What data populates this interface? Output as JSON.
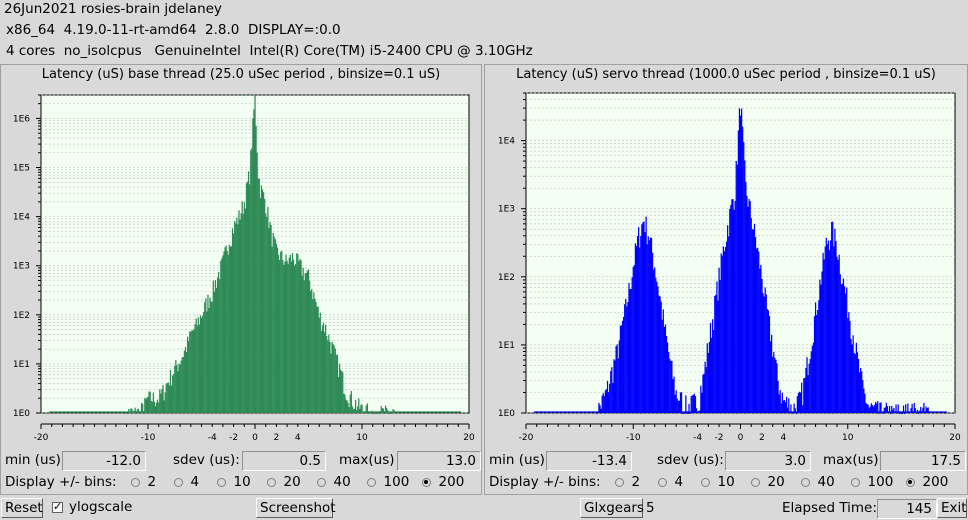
{
  "header": {
    "line1": "26Jun2021 rosies-brain jdelaney",
    "line2": "x86_64  4.19.0-11-rt-amd64  2.8.0  DISPLAY=:0.0",
    "line3": "4 cores  no_isolcpus   GenuineIntel  Intel(R) Core(TM) i5-2400 CPU @ 3.10GHz"
  },
  "base": {
    "title": "Latency (uS) base thread (25.0 uSec period , binsize=0.1 uS)",
    "color": "#2e8b57",
    "min_label": "min (us)",
    "min_value": "-12.0",
    "sdev_label": "sdev (us):",
    "sdev_value": "0.5",
    "max_label": "max(us)",
    "max_value": "13.0",
    "bins_label": "Display +/- bins:",
    "bins_options": [
      "2",
      "4",
      "10",
      "20",
      "40",
      "100",
      "200"
    ],
    "bins_selected": "200"
  },
  "servo": {
    "title": "Latency (uS) servo thread (1000.0 uSec period , binsize=0.1 uS)",
    "color": "#0000ff",
    "min_label": "min (us)",
    "min_value": "-13.4",
    "sdev_label": "sdev (us):",
    "sdev_value": "3.0",
    "max_label": "max(us)",
    "max_value": "17.5",
    "bins_label": "Display +/- bins:",
    "bins_options": [
      "2",
      "4",
      "10",
      "20",
      "40",
      "100",
      "200"
    ],
    "bins_selected": "200"
  },
  "chart_data": [
    {
      "type": "bar",
      "title": "Latency (uS) base thread (25.0 uSec period , binsize=0.1 uS)",
      "xlim": [
        -20,
        20
      ],
      "xticks": [
        "-20",
        "-10",
        "-4",
        "-2",
        "0",
        "2",
        "4",
        "10",
        "20"
      ],
      "xtick_values": [
        -20,
        -10,
        -4,
        -2,
        0,
        2,
        4,
        10,
        20
      ],
      "yscale": "log",
      "ylim": [
        1,
        3000000
      ],
      "yticks": [
        "1E0",
        "1E1",
        "1E2",
        "1E3",
        "1E4",
        "1E5",
        "1E6"
      ],
      "ytick_values": [
        1,
        10,
        100,
        1000,
        10000,
        100000,
        1000000
      ],
      "grid": true,
      "profile": [
        [
          -12.0,
          1
        ],
        [
          -11.0,
          1
        ],
        [
          -10.5,
          1.2
        ],
        [
          -10.0,
          2
        ],
        [
          -9.5,
          2
        ],
        [
          -9.0,
          2
        ],
        [
          -8.5,
          3
        ],
        [
          -8.0,
          5
        ],
        [
          -7.5,
          8
        ],
        [
          -7.0,
          12
        ],
        [
          -6.5,
          20
        ],
        [
          -6.0,
          40
        ],
        [
          -5.5,
          60
        ],
        [
          -5.0,
          100
        ],
        [
          -4.5,
          180
        ],
        [
          -4.0,
          300
        ],
        [
          -3.5,
          600
        ],
        [
          -3.0,
          1200
        ],
        [
          -2.5,
          3000
        ],
        [
          -2.0,
          6000
        ],
        [
          -1.5,
          10000
        ],
        [
          -1.0,
          20000
        ],
        [
          -0.5,
          80000
        ],
        [
          0.0,
          3000000
        ],
        [
          0.3,
          80000
        ],
        [
          0.5,
          40000
        ],
        [
          1.0,
          20000
        ],
        [
          1.5,
          5000
        ],
        [
          2.0,
          2000
        ],
        [
          2.5,
          1500
        ],
        [
          3.0,
          1200
        ],
        [
          3.5,
          1500
        ],
        [
          4.0,
          1200
        ],
        [
          4.5,
          800
        ],
        [
          5.0,
          600
        ],
        [
          5.5,
          250
        ],
        [
          6.0,
          100
        ],
        [
          6.5,
          60
        ],
        [
          7.0,
          30
        ],
        [
          7.5,
          15
        ],
        [
          8.0,
          7
        ],
        [
          8.5,
          3
        ],
        [
          9.0,
          2
        ],
        [
          9.5,
          1.5
        ],
        [
          10.0,
          1.2
        ],
        [
          11.0,
          1
        ],
        [
          13.0,
          1
        ]
      ]
    },
    {
      "type": "bar",
      "title": "Latency (uS) servo thread (1000.0 uSec period , binsize=0.1 uS)",
      "xlim": [
        -20,
        20
      ],
      "xticks": [
        "-20",
        "-10",
        "-4",
        "-2",
        "0",
        "2",
        "4",
        "10",
        "20"
      ],
      "xtick_values": [
        -20,
        -10,
        -4,
        -2,
        0,
        2,
        4,
        10,
        20
      ],
      "yscale": "log",
      "ylim": [
        1,
        50000
      ],
      "yticks": [
        "1E0",
        "1E1",
        "1E2",
        "1E3",
        "1E4"
      ],
      "ytick_values": [
        1,
        10,
        100,
        1000,
        10000
      ],
      "grid": true,
      "profile": [
        [
          -13.4,
          1
        ],
        [
          -12.5,
          2
        ],
        [
          -12.0,
          4
        ],
        [
          -11.5,
          8
        ],
        [
          -11.0,
          20
        ],
        [
          -10.5,
          50
        ],
        [
          -10.0,
          150
        ],
        [
          -9.5,
          400
        ],
        [
          -9.0,
          700
        ],
        [
          -8.5,
          400
        ],
        [
          -8.0,
          150
        ],
        [
          -7.5,
          50
        ],
        [
          -7.0,
          15
        ],
        [
          -6.5,
          5
        ],
        [
          -6.0,
          2
        ],
        [
          -5.5,
          1.5
        ],
        [
          -5.0,
          1.2
        ],
        [
          -4.0,
          1.5
        ],
        [
          -3.5,
          3
        ],
        [
          -3.0,
          10
        ],
        [
          -2.5,
          30
        ],
        [
          -2.0,
          100
        ],
        [
          -1.5,
          300
        ],
        [
          -1.0,
          800
        ],
        [
          -0.5,
          2000
        ],
        [
          0.0,
          40000
        ],
        [
          0.5,
          2000
        ],
        [
          1.0,
          800
        ],
        [
          1.5,
          300
        ],
        [
          2.0,
          100
        ],
        [
          2.5,
          30
        ],
        [
          3.0,
          10
        ],
        [
          3.5,
          3
        ],
        [
          4.0,
          1.5
        ],
        [
          5.0,
          1.2
        ],
        [
          5.5,
          1.5
        ],
        [
          6.0,
          3
        ],
        [
          6.5,
          10
        ],
        [
          7.0,
          30
        ],
        [
          7.5,
          100
        ],
        [
          8.0,
          300
        ],
        [
          8.5,
          500
        ],
        [
          9.0,
          300
        ],
        [
          9.5,
          100
        ],
        [
          10.0,
          40
        ],
        [
          10.5,
          15
        ],
        [
          11.0,
          5
        ],
        [
          11.5,
          2
        ],
        [
          12.0,
          1.2
        ],
        [
          13.0,
          1
        ],
        [
          17.5,
          1
        ]
      ]
    }
  ],
  "footer": {
    "reset_label": "Reset",
    "ylogscale_label": "ylogscale",
    "screenshot_label": "Screenshot",
    "glxgears_label": "Glxgears",
    "glxgears_count": "5",
    "elapsed_label": "Elapsed Time:",
    "elapsed_value": "145",
    "exit_label": "Exit"
  }
}
